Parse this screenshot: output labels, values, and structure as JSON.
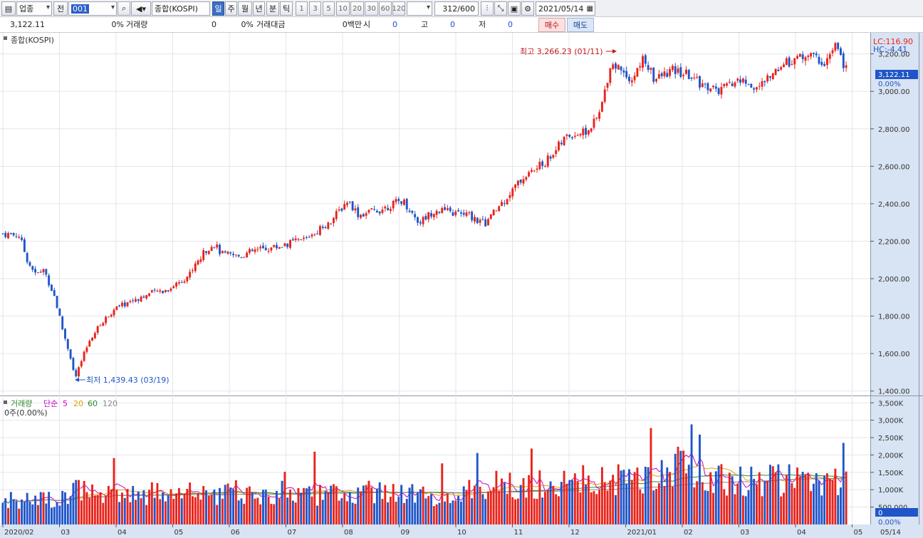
{
  "toolbar": {
    "market_type": "업종",
    "prev_label": "전",
    "code": "001",
    "index_name": "종합(KOSPI)",
    "periods": [
      "일",
      "주",
      "월",
      "년",
      "분",
      "틱"
    ],
    "active_period": "일",
    "intervals": [
      "1",
      "3",
      "5",
      "10",
      "20",
      "30",
      "60",
      "120"
    ],
    "count": "312",
    "count_max": "/600",
    "date": "2021/05/14"
  },
  "infobar": {
    "price": "3,122.11",
    "change_pct": "0%",
    "volume_label": "거래량",
    "volume_value": "0",
    "volume_pct": "0%",
    "amount_label": "거래대금",
    "amount_value": "0백만",
    "open_label": "시",
    "open_value": "0",
    "high_label": "고",
    "high_value": "0",
    "low_label": "저",
    "low_value": "0",
    "buy_label": "매수",
    "sell_label": "매도"
  },
  "price_panel": {
    "title": "종합(KOSPI)",
    "lc": "LC:116.90",
    "hc": "HC:-4.41",
    "current_price": "3,122.11",
    "current_pct": "0.00%",
    "high_annotation": "최고 3,266.23 (01/11)",
    "low_annotation": "최저 1,439.43 (03/19)",
    "colors": {
      "up": "#e8231b",
      "down": "#1f55c8",
      "axis_bg": "#d8e3f3",
      "current_box": "#1f55c8"
    }
  },
  "volume_panel": {
    "title": "거래량",
    "ma_label": "단순",
    "ma_periods": [
      "5",
      "20",
      "60",
      "120"
    ],
    "ma_colors": [
      "#cc00cc",
      "#e0a000",
      "#2a8a2a",
      "#888888"
    ],
    "volume_readout": "0주(0.00%)",
    "current_value": "0",
    "current_pct": "0.00%"
  },
  "x_axis": {
    "labels": [
      "2020/02",
      "03",
      "04",
      "05",
      "06",
      "07",
      "08",
      "09",
      "10",
      "11",
      "12",
      "2021/01",
      "02",
      "03",
      "04",
      "05"
    ],
    "end_label": "05/14"
  },
  "chart_data": {
    "type": "candlestick",
    "y_ticks": [
      "3,200.00",
      "3,000.00",
      "2,800.00",
      "2,600.00",
      "2,400.00",
      "2,200.00",
      "2,000.00",
      "1,800.00",
      "1,600.00",
      "1,400.00"
    ],
    "ylim": [
      1380,
      3290
    ],
    "x_months": [
      "2020/02",
      "03",
      "04",
      "05",
      "06",
      "07",
      "08",
      "09",
      "10",
      "11",
      "12",
      "2021/01",
      "02",
      "03",
      "04",
      "05"
    ],
    "close_path": [
      {
        "m": 0,
        "v": 2240
      },
      {
        "m": 0.3,
        "v": 2230
      },
      {
        "m": 0.45,
        "v": 2100
      },
      {
        "m": 0.6,
        "v": 2020
      },
      {
        "m": 0.75,
        "v": 2050
      },
      {
        "m": 0.95,
        "v": 1900
      },
      {
        "m": 1.1,
        "v": 1720
      },
      {
        "m": 1.25,
        "v": 1570
      },
      {
        "m": 1.32,
        "v": 1460
      },
      {
        "m": 1.45,
        "v": 1570
      },
      {
        "m": 1.6,
        "v": 1680
      },
      {
        "m": 1.8,
        "v": 1760
      },
      {
        "m": 2.0,
        "v": 1830
      },
      {
        "m": 2.4,
        "v": 1890
      },
      {
        "m": 2.8,
        "v": 1930
      },
      {
        "m": 3.0,
        "v": 1940
      },
      {
        "m": 3.4,
        "v": 2020
      },
      {
        "m": 3.7,
        "v": 2150
      },
      {
        "m": 3.85,
        "v": 2190
      },
      {
        "m": 4.0,
        "v": 2130
      },
      {
        "m": 4.3,
        "v": 2120
      },
      {
        "m": 4.6,
        "v": 2150
      },
      {
        "m": 5.0,
        "v": 2170
      },
      {
        "m": 5.5,
        "v": 2210
      },
      {
        "m": 6.0,
        "v": 2310
      },
      {
        "m": 6.3,
        "v": 2420
      },
      {
        "m": 6.5,
        "v": 2340
      },
      {
        "m": 6.9,
        "v": 2370
      },
      {
        "m": 7.3,
        "v": 2420
      },
      {
        "m": 7.6,
        "v": 2300
      },
      {
        "m": 7.9,
        "v": 2370
      },
      {
        "m": 8.2,
        "v": 2350
      },
      {
        "m": 8.5,
        "v": 2340
      },
      {
        "m": 8.8,
        "v": 2290
      },
      {
        "m": 9.1,
        "v": 2400
      },
      {
        "m": 9.5,
        "v": 2540
      },
      {
        "m": 9.9,
        "v": 2620
      },
      {
        "m": 10.3,
        "v": 2760
      },
      {
        "m": 10.7,
        "v": 2790
      },
      {
        "m": 10.9,
        "v": 2880
      },
      {
        "m": 11.1,
        "v": 3150
      },
      {
        "m": 11.3,
        "v": 3120
      },
      {
        "m": 11.5,
        "v": 3060
      },
      {
        "m": 11.7,
        "v": 3180
      },
      {
        "m": 11.9,
        "v": 3060
      },
      {
        "m": 12.2,
        "v": 3110
      },
      {
        "m": 12.5,
        "v": 3090
      },
      {
        "m": 12.8,
        "v": 3030
      },
      {
        "m": 13.1,
        "v": 3000
      },
      {
        "m": 13.4,
        "v": 3060
      },
      {
        "m": 13.8,
        "v": 3020
      },
      {
        "m": 14.2,
        "v": 3140
      },
      {
        "m": 14.7,
        "v": 3200
      },
      {
        "m": 15.0,
        "v": 3150
      },
      {
        "m": 15.2,
        "v": 3240
      },
      {
        "m": 15.4,
        "v": 3122
      }
    ],
    "volume_y_ticks": [
      "3,500K",
      "3,000K",
      "2,500K",
      "2,000K",
      "1,500K",
      "1,000K",
      "500,000"
    ],
    "volume_ylim": [
      0,
      3650
    ],
    "volume_path": [
      {
        "m": 0,
        "v": 650
      },
      {
        "m": 1.0,
        "v": 800
      },
      {
        "m": 1.5,
        "v": 1100
      },
      {
        "m": 2.0,
        "v": 900
      },
      {
        "m": 3.0,
        "v": 950
      },
      {
        "m": 4.0,
        "v": 920
      },
      {
        "m": 5.0,
        "v": 850
      },
      {
        "m": 6.0,
        "v": 900
      },
      {
        "m": 7.0,
        "v": 950
      },
      {
        "m": 8.0,
        "v": 850
      },
      {
        "m": 9.0,
        "v": 1200
      },
      {
        "m": 10.0,
        "v": 1200
      },
      {
        "m": 11.0,
        "v": 1400
      },
      {
        "m": 11.5,
        "v": 1300
      },
      {
        "m": 12.3,
        "v": 1800
      },
      {
        "m": 12.7,
        "v": 1500
      },
      {
        "m": 13.5,
        "v": 1300
      },
      {
        "m": 14.5,
        "v": 1350
      },
      {
        "m": 15.4,
        "v": 1250
      }
    ]
  }
}
